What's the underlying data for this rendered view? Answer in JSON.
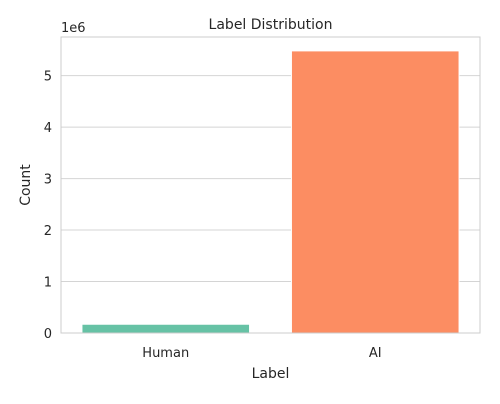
{
  "chart_data": {
    "type": "bar",
    "title": "Label Distribution",
    "xlabel": "Label",
    "ylabel": "Count",
    "categories": [
      "Human",
      "AI"
    ],
    "values": [
      170000,
      5480000
    ],
    "colors": [
      "#66c2a5",
      "#fc8d62"
    ],
    "ylim": [
      0,
      5750000
    ],
    "yticks": [
      0,
      1000000,
      2000000,
      3000000,
      4000000,
      5000000
    ],
    "ytick_labels": [
      "0",
      "1",
      "2",
      "3",
      "4",
      "5"
    ],
    "y_offset_label": "1e6",
    "grid": "horizontal"
  }
}
